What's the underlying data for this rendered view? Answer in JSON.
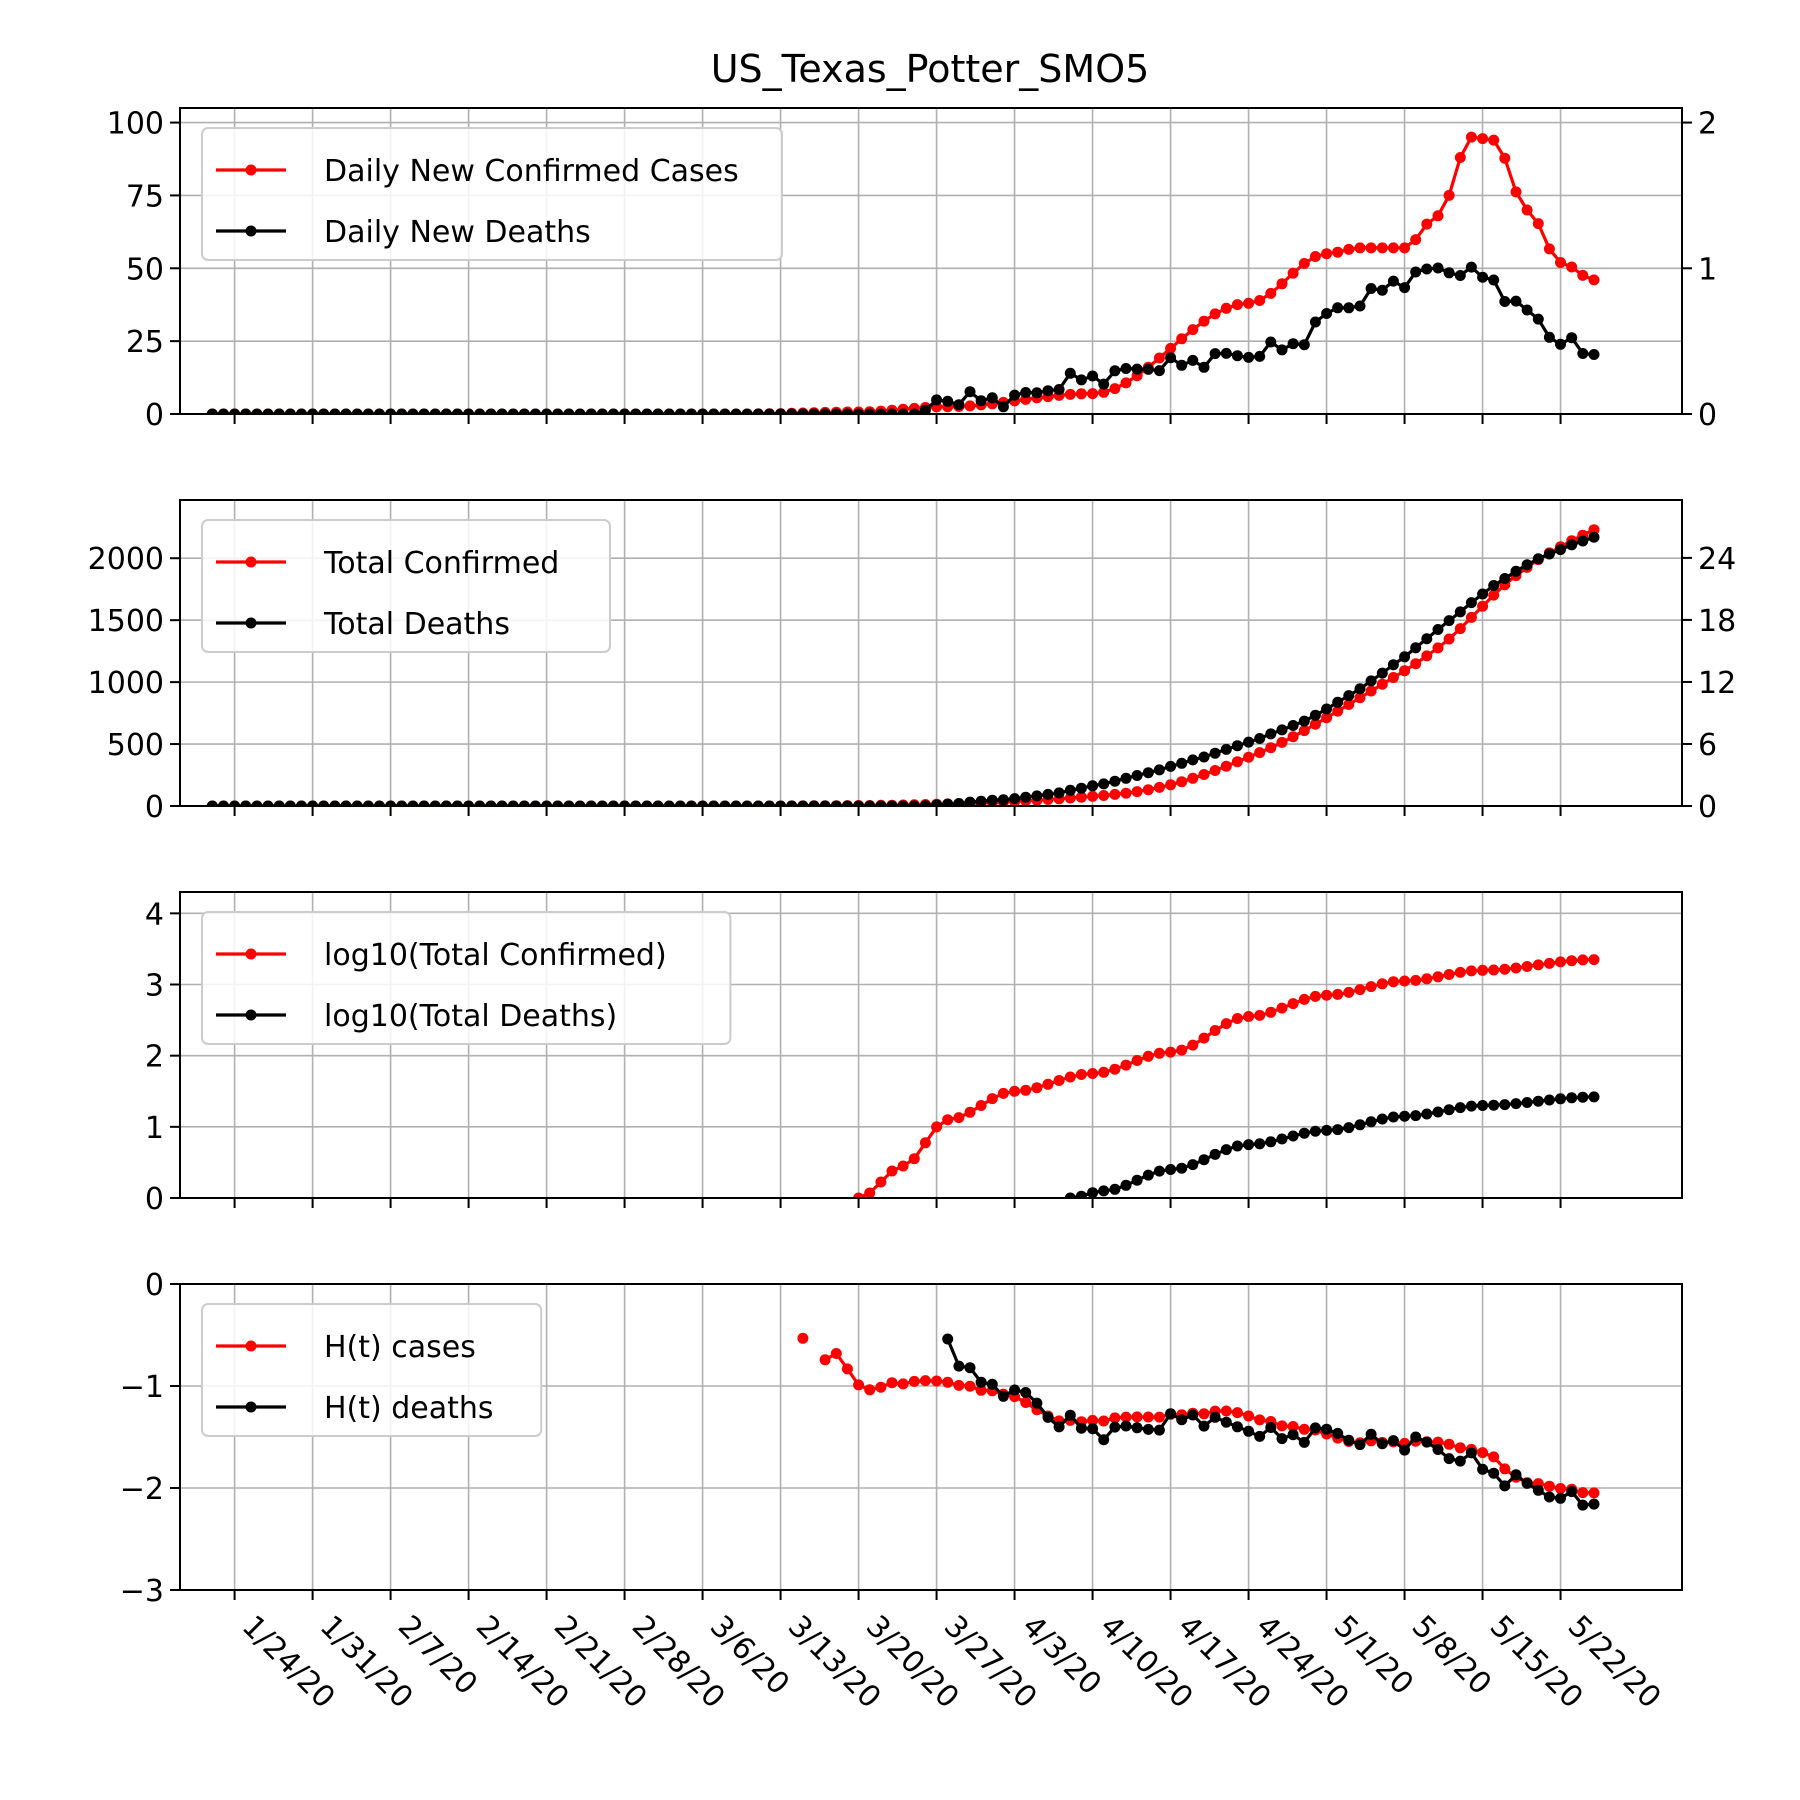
{
  "figure": {
    "title": "US_Texas_Potter_SMO5",
    "colors": {
      "cases": "#ff0000",
      "deaths": "#000000",
      "grid": "#b0b0b0",
      "axes": "#000000",
      "legend_border": "#cccccc"
    },
    "x_ticks": [
      "1/24/20",
      "1/31/20",
      "2/7/20",
      "2/14/20",
      "2/21/20",
      "2/28/20",
      "3/6/20",
      "3/13/20",
      "3/20/20",
      "3/27/20",
      "4/3/20",
      "4/10/20",
      "4/17/20",
      "4/24/20",
      "5/1/20",
      "5/8/20",
      "5/15/20",
      "5/22/20"
    ]
  },
  "chart_data": [
    {
      "type": "line",
      "x_start": "1/22/20",
      "x_end": "5/25/20",
      "x_step_days": 1,
      "grid": true,
      "legend_location": "upper left",
      "y_left_ticks": [
        0,
        25,
        50,
        75,
        100
      ],
      "y_left_lim": [
        0,
        105
      ],
      "y_right_ticks": [
        0,
        1,
        2
      ],
      "y_right_lim": [
        0,
        2.1
      ],
      "series": [
        {
          "name": "Daily New Confirmed Cases",
          "color": "#ff0000",
          "axis": "left",
          "shape": "cases_daily",
          "key_values": {
            "3/20/20": 1,
            "4/10/20": 6,
            "4/17/20": 15,
            "4/24/20": 37,
            "5/1/20": 55,
            "5/4/20": 57,
            "5/8/20": 58,
            "5/11/20": 80,
            "5/14/20": 96,
            "5/18/20": 68,
            "5/21/20": 47,
            "5/25/20": 46
          }
        },
        {
          "name": "Daily New Deaths",
          "color": "#000000",
          "axis": "right",
          "shape": "deaths_daily",
          "key_values": {
            "3/27/20": 0.1,
            "4/3/20": 0.1,
            "4/10/20": 0.2,
            "4/17/20": 0.3,
            "4/24/20": 0.4,
            "5/1/20": 0.7,
            "5/7/20": 0.9,
            "5/11/20": 1.0,
            "5/18/20": 0.6,
            "5/22/20": 0.4,
            "5/25/20": 0.4
          }
        }
      ]
    },
    {
      "type": "line",
      "x_start": "1/22/20",
      "x_end": "5/25/20",
      "x_step_days": 1,
      "grid": true,
      "legend_location": "upper left",
      "y_left_ticks": [
        0,
        500,
        1000,
        1500,
        2000
      ],
      "y_left_lim": [
        0,
        2470
      ],
      "y_right_ticks": [
        0,
        6,
        12,
        18,
        24
      ],
      "y_right_lim": [
        0,
        29.6
      ],
      "series": [
        {
          "name": "Total Confirmed",
          "color": "#ff0000",
          "axis": "left",
          "shape": "cases_total",
          "key_values": {
            "3/20/20": 3,
            "4/10/20": 55,
            "4/24/20": 390,
            "5/8/20": 1050,
            "5/15/20": 1700,
            "5/25/20": 2230
          }
        },
        {
          "name": "Total Deaths",
          "color": "#000000",
          "axis": "right",
          "shape": "deaths_total",
          "key_values": {
            "4/3/20": 1,
            "4/10/20": 1.7,
            "4/24/20": 6.5,
            "5/8/20": 15,
            "5/15/20": 21,
            "5/25/20": 26
          }
        }
      ]
    },
    {
      "type": "line",
      "x_start": "1/22/20",
      "x_end": "5/25/20",
      "x_step_days": 1,
      "grid": true,
      "legend_location": "upper left",
      "y_left_ticks": [
        0,
        1,
        2,
        3,
        4
      ],
      "y_left_lim": [
        0,
        4.3
      ],
      "series": [
        {
          "name": "log10(Total Confirmed)",
          "color": "#ff0000",
          "axis": "left",
          "shape": "log_cases",
          "key_values": {
            "3/21/20": 0.0,
            "3/28/20": 1.1,
            "4/10/20": 1.75,
            "4/24/20": 2.6,
            "5/8/20": 3.05,
            "5/25/20": 3.35
          }
        },
        {
          "name": "log10(Total Deaths)",
          "color": "#000000",
          "axis": "left",
          "shape": "log_deaths",
          "key_values": {
            "4/9/20": 0.0,
            "4/17/20": 0.4,
            "4/24/20": 0.8,
            "5/8/20": 1.15,
            "5/25/20": 1.42
          }
        }
      ]
    },
    {
      "type": "line",
      "x_start": "1/22/20",
      "x_end": "5/25/20",
      "x_step_days": 1,
      "grid": true,
      "legend_location": "upper left",
      "y_left_ticks": [
        0,
        -1,
        -2,
        -3
      ],
      "y_left_lim": [
        -3,
        0
      ],
      "series": [
        {
          "name": "H(t) cases",
          "color": "#ff0000",
          "axis": "left",
          "shape": "h_cases",
          "key_values": {
            "3/15/20": -0.52,
            "3/20/20": -1.0,
            "3/27/20": -1.0,
            "4/10/20": -1.4,
            "4/24/20": -1.25,
            "5/8/20": -1.55,
            "5/15/20": -1.65,
            "5/25/20": -2.05
          }
        },
        {
          "name": "H(t) deaths",
          "color": "#000000",
          "axis": "left",
          "shape": "h_deaths",
          "key_values": {
            "3/28/20": -0.52,
            "4/3/20": -1.15,
            "4/10/20": -1.5,
            "4/17/20": -1.4,
            "4/24/20": -1.5,
            "5/8/20": -1.55,
            "5/15/20": -1.9,
            "5/25/20": -2.17
          }
        }
      ]
    }
  ]
}
